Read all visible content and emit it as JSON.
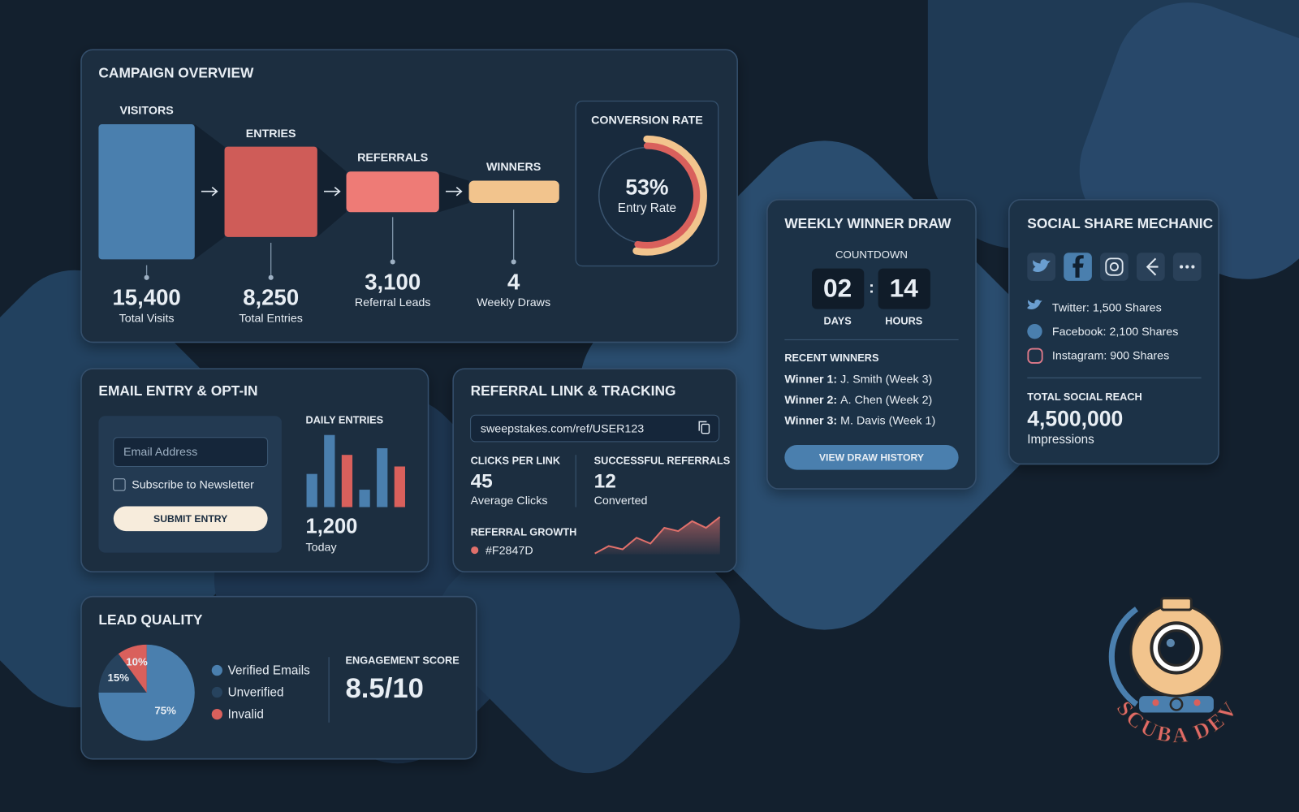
{
  "campaign_overview": {
    "title": "CAMPAIGN OVERVIEW",
    "stages": [
      {
        "label": "VISITORS",
        "value": "15,400",
        "caption": "Total Visits"
      },
      {
        "label": "ENTRIES",
        "value": "8,250",
        "caption": "Total Entries"
      },
      {
        "label": "REFERRALS",
        "value": "3,100",
        "caption": "Referral Leads"
      },
      {
        "label": "WINNERS",
        "value": "4",
        "caption": "Weekly Draws"
      }
    ],
    "conversion_rate": {
      "type": "gauge",
      "title": "CONVERSION RATE",
      "value": 53,
      "value_label": "53%",
      "caption": "Entry Rate",
      "colors": [
        "#d9605c",
        "#f2c48d"
      ]
    }
  },
  "email_entry": {
    "title": "EMAIL ENTRY & OPT-IN",
    "email_placeholder": "Email Address",
    "checkbox_label": "Subscribe to Newsletter",
    "button": "SUBMIT ENTRY",
    "daily_entries": {
      "type": "bar",
      "title": "DAILY ENTRIES",
      "values": [
        40,
        87,
        63,
        21,
        71,
        49
      ],
      "colors": [
        "#4a7fae",
        "#4a7fae",
        "#d9605c",
        "#4a7fae",
        "#4a7fae",
        "#d9605c"
      ],
      "today": "1,200",
      "today_caption": "Today"
    }
  },
  "referral_tracking": {
    "title": "REFERRAL LINK & TRACKING",
    "link": "sweepstakes.com/ref/USER123",
    "clicks": {
      "label": "CLICKS PER LINK",
      "value": "45",
      "caption": "Average Clicks"
    },
    "referrals": {
      "label": "SUCCESSFUL REFERRALS",
      "value": "12",
      "caption": "Converted"
    },
    "growth": {
      "type": "area",
      "title": "REFERRAL GROWTH",
      "legend": "#F2847D",
      "color": "#e0706b",
      "values": [
        1,
        10,
        6,
        20,
        13,
        32,
        28,
        40,
        32,
        45
      ]
    }
  },
  "lead_quality": {
    "title": "LEAD QUALITY",
    "pie": {
      "type": "pie",
      "categories": [
        "Verified Emails",
        "Unverified",
        "Invalid"
      ],
      "values": [
        75,
        15,
        10
      ],
      "value_labels": [
        "75%",
        "15%",
        "10%"
      ],
      "colors": [
        "#4a7fae",
        "#27435e",
        "#d9605c"
      ]
    },
    "engagement": {
      "label": "ENGAGEMENT SCORE",
      "value": "8.5/10"
    }
  },
  "weekly_draw": {
    "title": "WEEKLY WINNER DRAW",
    "countdown_label": "COUNTDOWN",
    "days": "02",
    "days_label": "DAYS",
    "separator": ":",
    "hours": "14",
    "hours_label": "HOURS",
    "recent_title": "RECENT WINNERS",
    "winners": [
      {
        "label": "Winner 1:",
        "name": "J. Smith (Week 3)"
      },
      {
        "label": "Winner 2:",
        "name": "A. Chen (Week 2)"
      },
      {
        "label": "Winner 3:",
        "name": "M. Davis (Week 1)"
      }
    ],
    "button": "VIEW DRAW HISTORY"
  },
  "social_share": {
    "title": "SOCIAL SHARE MECHANIC",
    "shares": [
      "Twitter: 1,500 Shares",
      "Facebook: 2,100 Shares",
      "Instagram: 900 Shares"
    ],
    "reach_label": "TOTAL SOCIAL REACH",
    "reach": "4,500,000",
    "reach_caption": "Impressions"
  },
  "logo": "SCUBA DEV"
}
